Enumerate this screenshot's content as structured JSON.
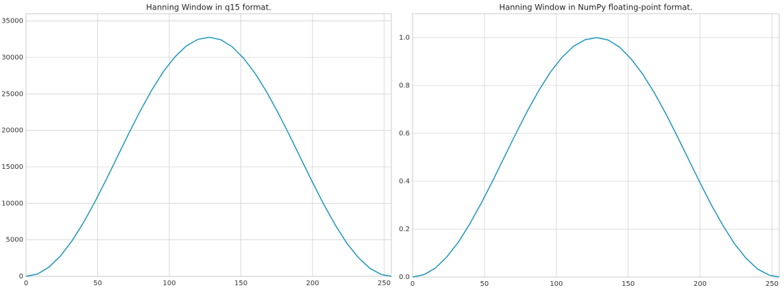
{
  "chart_data": [
    {
      "type": "line",
      "title": "Hanning Window in q15 format.",
      "x": [
        0,
        8,
        16,
        24,
        32,
        40,
        48,
        56,
        64,
        72,
        80,
        88,
        96,
        104,
        112,
        120,
        128,
        136,
        144,
        152,
        160,
        168,
        176,
        184,
        192,
        200,
        208,
        216,
        224,
        232,
        240,
        248,
        255
      ],
      "values": [
        0,
        317,
        1257,
        2782,
        4832,
        7329,
        10178,
        13273,
        16484,
        19691,
        22775,
        25600,
        28093,
        30088,
        31598,
        32482,
        32764,
        32432,
        31450,
        29862,
        27790,
        25266,
        22398,
        19296,
        16081,
        12878,
        9805,
        6999,
        4530,
        2568,
        1094,
        250,
        0
      ],
      "color": "#1a93bd",
      "xlim": [
        0,
        255
      ],
      "ylim": [
        0,
        36000
      ],
      "xticks": [
        0,
        50,
        100,
        150,
        200,
        250
      ],
      "yticks": [
        0,
        5000,
        10000,
        15000,
        20000,
        25000,
        30000,
        35000
      ],
      "grid": true
    },
    {
      "type": "line",
      "title": "Hanning Window in NumPy floating-point format.",
      "x": [
        0,
        8,
        16,
        24,
        32,
        40,
        48,
        56,
        64,
        72,
        80,
        88,
        96,
        104,
        112,
        120,
        128,
        136,
        144,
        152,
        160,
        168,
        176,
        184,
        192,
        200,
        208,
        216,
        224,
        232,
        240,
        248,
        255
      ],
      "values": [
        0,
        0.01,
        0.038,
        0.085,
        0.147,
        0.224,
        0.311,
        0.405,
        0.503,
        0.601,
        0.695,
        0.781,
        0.857,
        0.918,
        0.964,
        0.991,
        1.0,
        0.99,
        0.96,
        0.911,
        0.848,
        0.771,
        0.684,
        0.589,
        0.491,
        0.393,
        0.299,
        0.214,
        0.138,
        0.078,
        0.033,
        0.008,
        0
      ],
      "color": "#1a93bd",
      "xlim": [
        0,
        255
      ],
      "ylim": [
        0,
        1.1
      ],
      "xticks": [
        0,
        50,
        100,
        150,
        200,
        250
      ],
      "yticks": [
        {
          "value": 0,
          "label": "0.0"
        },
        0.2,
        0.4,
        0.6,
        0.8,
        {
          "value": 1,
          "label": "1.0"
        }
      ],
      "grid": true
    }
  ]
}
